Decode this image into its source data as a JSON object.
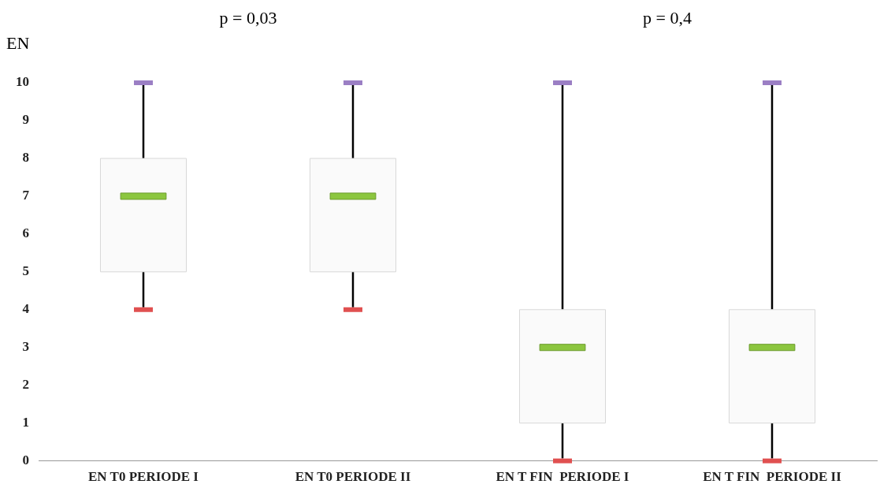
{
  "chart_data": {
    "type": "box",
    "ylabel": "EN",
    "categories": [
      "EN T0 PERIODE I",
      "EN T0 PERIODE II",
      "EN T FIN  PERIODE I",
      "EN T FIN  PERIODE II"
    ],
    "boxes": [
      {
        "low": 4,
        "q1": 5,
        "median": 7,
        "q3": 8,
        "high": 10
      },
      {
        "low": 4,
        "q1": 5,
        "median": 7,
        "q3": 8,
        "high": 10
      },
      {
        "low": 0,
        "q1": 1,
        "median": 3,
        "q3": 4,
        "high": 10
      },
      {
        "low": 0,
        "q1": 1,
        "median": 3,
        "q3": 4,
        "high": 10
      }
    ],
    "ylim": [
      0,
      10
    ],
    "yticks": [
      0,
      1,
      2,
      3,
      4,
      5,
      6,
      7,
      8,
      9,
      10
    ],
    "grid": false,
    "legend": false,
    "annotations": [
      "p = 0,03",
      "p = 0,4"
    ]
  }
}
